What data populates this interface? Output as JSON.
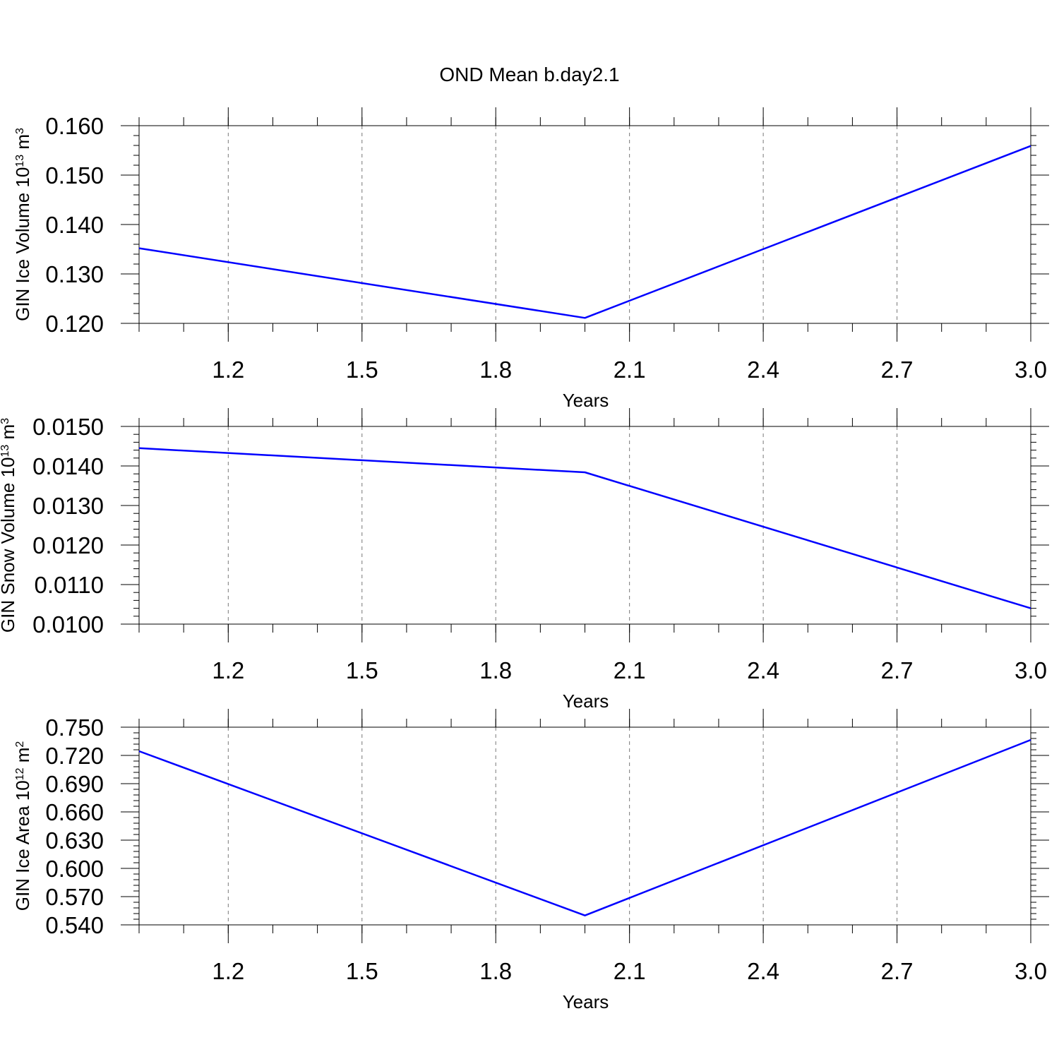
{
  "title": "OND Mean b.day2.1",
  "line_color": "#0000ff",
  "chart_data": [
    {
      "type": "line",
      "title": "OND Mean b.day2.1",
      "xlabel": "Years",
      "ylabel": {
        "text": "GIN Ice Volume 10",
        "sup1": "13",
        "unit": " m",
        "sup2": "3"
      },
      "xlim": [
        1.0,
        3.0
      ],
      "ylim": [
        0.12,
        0.16
      ],
      "x_ticks": [
        1.2,
        1.5,
        1.8,
        2.1,
        2.4,
        2.7,
        3.0
      ],
      "x_tick_labels": [
        "1.2",
        "1.5",
        "1.8",
        "2.1",
        "2.4",
        "2.7",
        "3.0"
      ],
      "y_ticks": [
        0.12,
        0.13,
        0.14,
        0.15,
        0.16
      ],
      "y_tick_labels": [
        "0.120",
        "0.130",
        "0.140",
        "0.150",
        "0.160"
      ],
      "grid": "x-dashed",
      "x": [
        1.0,
        2.0,
        3.0
      ],
      "y": [
        0.1352,
        0.1211,
        0.1559
      ]
    },
    {
      "type": "line",
      "xlabel": "Years",
      "ylabel": {
        "text": "GIN Snow Volume 10",
        "sup1": "13",
        "unit": " m",
        "sup2": "3"
      },
      "xlim": [
        1.0,
        3.0
      ],
      "ylim": [
        0.01,
        0.015
      ],
      "x_ticks": [
        1.2,
        1.5,
        1.8,
        2.1,
        2.4,
        2.7,
        3.0
      ],
      "x_tick_labels": [
        "1.2",
        "1.5",
        "1.8",
        "2.1",
        "2.4",
        "2.7",
        "3.0"
      ],
      "y_ticks": [
        0.01,
        0.011,
        0.012,
        0.013,
        0.014,
        0.015
      ],
      "y_tick_labels": [
        "0.0100",
        "0.0110",
        "0.0120",
        "0.0130",
        "0.0140",
        "0.0150"
      ],
      "grid": "x-dashed",
      "x": [
        1.0,
        2.0,
        3.0
      ],
      "y": [
        0.01445,
        0.01384,
        0.0104
      ]
    },
    {
      "type": "line",
      "xlabel": "Years",
      "ylabel": {
        "text": "GIN Ice Area 10",
        "sup1": "12",
        "unit": " m",
        "sup2": "2"
      },
      "xlim": [
        1.0,
        3.0
      ],
      "ylim": [
        0.54,
        0.75
      ],
      "x_ticks": [
        1.2,
        1.5,
        1.8,
        2.1,
        2.4,
        2.7,
        3.0
      ],
      "x_tick_labels": [
        "1.2",
        "1.5",
        "1.8",
        "2.1",
        "2.4",
        "2.7",
        "3.0"
      ],
      "y_ticks": [
        0.54,
        0.57,
        0.6,
        0.63,
        0.66,
        0.69,
        0.72,
        0.75
      ],
      "y_tick_labels": [
        "0.540",
        "0.570",
        "0.600",
        "0.630",
        "0.660",
        "0.690",
        "0.720",
        "0.750"
      ],
      "grid": "x-dashed",
      "x": [
        1.0,
        2.0,
        3.0
      ],
      "y": [
        0.7245,
        0.55,
        0.7365
      ]
    }
  ]
}
